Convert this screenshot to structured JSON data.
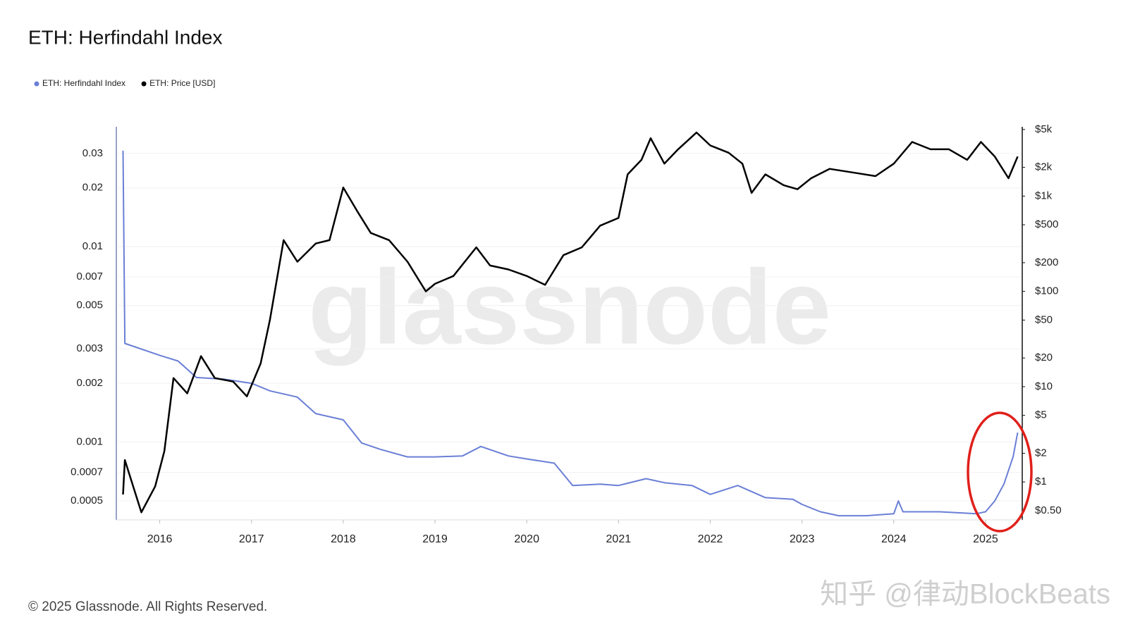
{
  "chart_data": {
    "type": "line",
    "title": "ETH: Herfindahl Index",
    "watermark": "glassnode",
    "footer": "© 2025 Glassnode. All Rights Reserved.",
    "overlay_watermark": "知乎 @律动BlockBeats",
    "log_y": true,
    "log_y2": true,
    "grid": true,
    "legend": "top-left",
    "xlim": [
      2015.55,
      2025.4
    ],
    "xticks": [
      2016,
      2017,
      2018,
      2019,
      2020,
      2021,
      2022,
      2023,
      2024,
      2025
    ],
    "ylim": [
      0.0004,
      0.0394
    ],
    "yticks": [
      0.0005,
      0.0007,
      0.001,
      0.002,
      0.003,
      0.005,
      0.007,
      0.01,
      0.02,
      0.03
    ],
    "y2lim": [
      0.4,
      4900
    ],
    "y2ticks": [
      {
        "value": 0.5,
        "label": "$0.50"
      },
      {
        "value": 1,
        "label": "$1"
      },
      {
        "value": 2,
        "label": "$2"
      },
      {
        "value": 5,
        "label": "$5"
      },
      {
        "value": 10,
        "label": "$10"
      },
      {
        "value": 20,
        "label": "$20"
      },
      {
        "value": 50,
        "label": "$50"
      },
      {
        "value": 100,
        "label": "$100"
      },
      {
        "value": 200,
        "label": "$200"
      },
      {
        "value": 500,
        "label": "$500"
      },
      {
        "value": 1000,
        "label": "$1k"
      },
      {
        "value": 2000,
        "label": "$2k"
      },
      {
        "value": 5000,
        "label": "$5k"
      }
    ],
    "series": [
      {
        "name": "ETH: Herfindahl Index",
        "color": "#6a7fd6",
        "axis": "y",
        "x": [
          2015.6,
          2015.62,
          2016.0,
          2016.2,
          2016.4,
          2016.7,
          2017.0,
          2017.2,
          2017.5,
          2017.7,
          2018.0,
          2018.2,
          2018.4,
          2018.7,
          2019.0,
          2019.3,
          2019.5,
          2019.8,
          2020.0,
          2020.3,
          2020.5,
          2020.8,
          2021.0,
          2021.3,
          2021.5,
          2021.8,
          2022.0,
          2022.3,
          2022.6,
          2022.9,
          2023.0,
          2023.2,
          2023.4,
          2023.7,
          2024.0,
          2024.05,
          2024.1,
          2024.5,
          2024.9,
          2025.0,
          2025.1,
          2025.2,
          2025.3,
          2025.35
        ],
        "values": [
          0.031,
          0.0032,
          0.00278,
          0.0026,
          0.00214,
          0.0021,
          0.002,
          0.00183,
          0.0017,
          0.0014,
          0.0013,
          0.00099,
          0.00092,
          0.00084,
          0.00084,
          0.00085,
          0.00095,
          0.00085,
          0.00082,
          0.00078,
          0.0006,
          0.00061,
          0.0006,
          0.00065,
          0.00062,
          0.0006,
          0.00054,
          0.0006,
          0.00052,
          0.00051,
          0.00048,
          0.00044,
          0.00042,
          0.00042,
          0.00043,
          0.0005,
          0.00044,
          0.00044,
          0.00043,
          0.00044,
          0.0005,
          0.00061,
          0.00084,
          0.00112
        ]
      },
      {
        "name": "ETH: Price [USD]",
        "color": "#000000",
        "axis": "y2",
        "x": [
          2015.6,
          2015.62,
          2015.8,
          2015.95,
          2016.05,
          2016.15,
          2016.3,
          2016.45,
          2016.6,
          2016.8,
          2016.95,
          2017.1,
          2017.2,
          2017.35,
          2017.5,
          2017.7,
          2017.85,
          2018.0,
          2018.15,
          2018.3,
          2018.5,
          2018.7,
          2018.9,
          2019.0,
          2019.2,
          2019.45,
          2019.6,
          2019.8,
          2020.0,
          2020.2,
          2020.4,
          2020.6,
          2020.8,
          2021.0,
          2021.1,
          2021.25,
          2021.35,
          2021.5,
          2021.65,
          2021.85,
          2022.0,
          2022.2,
          2022.35,
          2022.45,
          2022.6,
          2022.8,
          2022.95,
          2023.1,
          2023.3,
          2023.6,
          2023.8,
          2024.0,
          2024.2,
          2024.4,
          2024.6,
          2024.8,
          2024.95,
          2025.1,
          2025.25,
          2025.35
        ],
        "values": [
          0.74,
          1.7,
          0.48,
          0.9,
          2.1,
          12.3,
          8.5,
          20.9,
          12.3,
          11.3,
          7.9,
          17.5,
          50,
          345,
          205,
          318,
          345,
          1230,
          700,
          410,
          345,
          205,
          100,
          120,
          145,
          290,
          187,
          170,
          145,
          117,
          240,
          290,
          490,
          590,
          1690,
          2400,
          4050,
          2190,
          3100,
          4650,
          3400,
          2850,
          2190,
          1080,
          1690,
          1300,
          1180,
          1540,
          1930,
          1740,
          1620,
          2190,
          3700,
          3100,
          3100,
          2400,
          3700,
          2600,
          1540,
          2600
        ]
      }
    ]
  }
}
